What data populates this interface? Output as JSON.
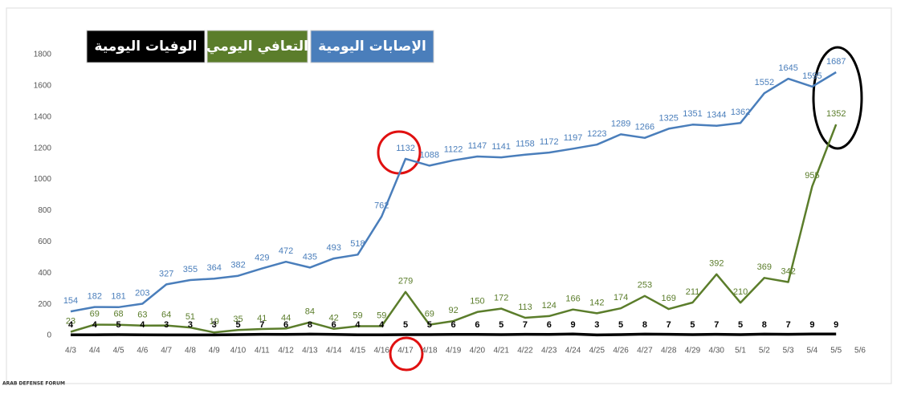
{
  "chart_data": {
    "type": "line",
    "categories": [
      "4/3",
      "4/4",
      "4/5",
      "4/6",
      "4/7",
      "4/8",
      "4/9",
      "4/10",
      "4/11",
      "4/12",
      "4/13",
      "4/14",
      "4/15",
      "4/16",
      "4/17",
      "4/18",
      "4/19",
      "4/20",
      "4/21",
      "4/22",
      "4/23",
      "4/24",
      "4/25",
      "4/26",
      "4/27",
      "4/28",
      "4/29",
      "4/30",
      "5/1",
      "5/2",
      "5/3",
      "5/4",
      "5/5",
      "5/6"
    ],
    "series": [
      {
        "name": "الإصابات اليومية",
        "color": "#4a7ebb",
        "values": [
          154,
          182,
          181,
          203,
          327,
          355,
          364,
          382,
          429,
          472,
          435,
          493,
          518,
          762,
          1132,
          1088,
          1122,
          1147,
          1141,
          1158,
          1172,
          1197,
          1223,
          1289,
          1266,
          1325,
          1351,
          1344,
          1362,
          1552,
          1645,
          1595,
          1687,
          null
        ]
      },
      {
        "name": "التعافي اليومي",
        "color": "#5b7d2b",
        "values": [
          23,
          69,
          68,
          63,
          64,
          51,
          19,
          35,
          41,
          44,
          84,
          42,
          59,
          59,
          279,
          69,
          92,
          150,
          172,
          113,
          124,
          166,
          142,
          174,
          253,
          169,
          211,
          392,
          210,
          369,
          342,
          955,
          1352,
          null
        ]
      },
      {
        "name": "الوفيات اليومية",
        "color": "#000000",
        "values": [
          4,
          4,
          5,
          4,
          3,
          3,
          3,
          5,
          7,
          6,
          8,
          6,
          4,
          4,
          5,
          5,
          6,
          6,
          5,
          7,
          6,
          9,
          3,
          5,
          8,
          7,
          5,
          7,
          5,
          8,
          7,
          9,
          9,
          null
        ]
      }
    ],
    "ylim": [
      0,
      1800
    ],
    "yticks": [
      0,
      200,
      400,
      600,
      800,
      1000,
      1200,
      1400,
      1600,
      1800
    ],
    "watermark": "ARAB DEFENSE FORUM"
  }
}
